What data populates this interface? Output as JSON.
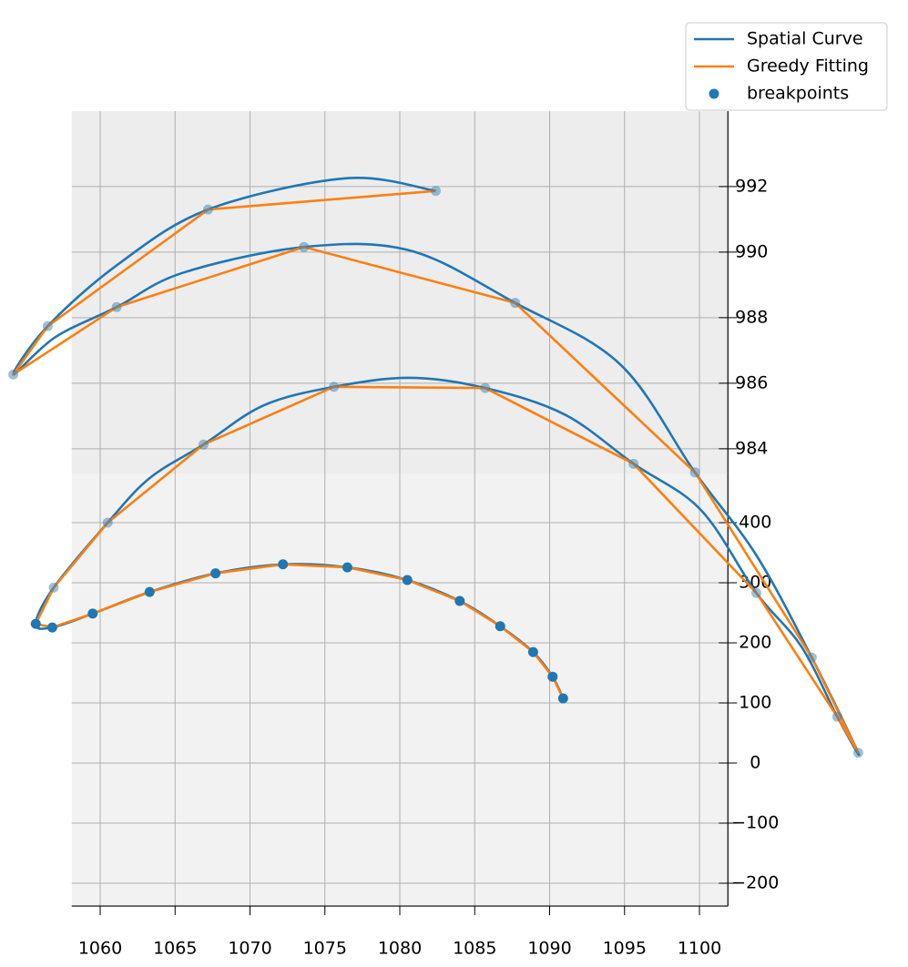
{
  "chart_data": {
    "type": "line3d",
    "xlim": [
      1058.1,
      1101.9
    ],
    "ylim": [
      -238,
      482
    ],
    "zlim": [
      983.25,
      994.3
    ],
    "xticks": [
      1060,
      1065,
      1070,
      1075,
      1080,
      1085,
      1090,
      1095,
      1100
    ],
    "yticks": [
      {
        "value": -200,
        "label": "−200"
      },
      {
        "value": -100,
        "label": "−100"
      },
      0,
      100,
      200,
      300,
      400
    ],
    "zticks": [
      984,
      986,
      988,
      990,
      992
    ],
    "grid": true,
    "legend": "upper right",
    "series": [
      {
        "name": "Spatial Curve",
        "color": "#1f77b4",
        "x": [
          1090.9,
          1090.2,
          1088.9,
          1086.7,
          1084.0,
          1080.5,
          1076.5,
          1072.2,
          1067.7,
          1063.3,
          1059.5,
          1056.8,
          1055.7,
          1056.9,
          1060.5,
          1063.3,
          1066.9,
          1070.9,
          1075.6,
          1080.7,
          1085.7,
          1091.0,
          1095.6,
          1100.1,
          1103.8,
          1106.8,
          1109.2,
          1110.6,
          1107.5,
          1103.8,
          1099.7,
          1094.7,
          1087.7,
          1080.7,
          1073.6,
          1065.5,
          1061.1,
          1057.0,
          1054.2,
          1056.5,
          1061.2,
          1067.2,
          1076.4,
          1082.4
        ],
        "y": [
          94,
          130,
          171,
          214,
          256,
          291,
          312,
          317,
          302,
          271,
          235,
          212,
          218,
          142,
          250,
          324,
          380,
          445,
          476,
          491,
          474,
          430,
          348,
          271,
          133,
          44,
          -73,
          -133,
          -138,
          32,
          170,
          350,
          452,
          539,
          545,
          502,
          445,
          395,
          333,
          277,
          380,
          471,
          523,
          502
        ],
        "z": [
          983.5,
          983.5,
          983.5,
          983.5,
          983.5,
          983.5,
          983.5,
          983.5,
          983.5,
          983.5,
          983.5,
          983.5,
          983.5,
          986,
          986,
          986,
          986,
          986,
          986,
          986,
          986,
          986,
          986,
          986,
          986,
          986,
          986,
          986,
          989,
          989,
          989,
          989,
          989,
          989,
          989,
          989,
          989,
          989,
          989,
          991.5,
          991.5,
          991.5,
          991.5,
          991.5
        ]
      },
      {
        "name": "Greedy Fitting",
        "color": "#ff7f0e",
        "x": [
          1090.9,
          1090.2,
          1088.9,
          1086.7,
          1084.0,
          1080.5,
          1076.5,
          1072.2,
          1067.7,
          1063.3,
          1059.5,
          1056.8,
          1055.7,
          1056.9,
          1060.5,
          1066.9,
          1075.6,
          1085.7,
          1095.6,
          1103.8,
          1109.2,
          1110.6,
          1107.5,
          1099.7,
          1087.7,
          1073.6,
          1061.1,
          1054.2,
          1056.5,
          1067.2,
          1082.4
        ],
        "y": [
          94,
          130,
          171,
          214,
          256,
          291,
          312,
          317,
          302,
          271,
          235,
          212,
          218,
          142,
          250,
          380,
          476,
          474,
          348,
          133,
          -73,
          -133,
          -138,
          170,
          452,
          545,
          445,
          333,
          277,
          471,
          502
        ],
        "z": [
          983.5,
          983.5,
          983.5,
          983.5,
          983.5,
          983.5,
          983.5,
          983.5,
          983.5,
          983.5,
          983.5,
          983.5,
          983.5,
          986,
          986,
          986,
          986,
          986,
          986,
          986,
          986,
          986,
          989,
          989,
          989,
          989,
          989,
          989,
          991.5,
          991.5,
          991.5
        ]
      }
    ],
    "scatter": {
      "name": "breakpoints",
      "color": "#1f77b4",
      "x": [
        1090.9,
        1090.2,
        1088.9,
        1086.7,
        1084.0,
        1080.5,
        1076.5,
        1072.2,
        1067.7,
        1063.3,
        1059.5,
        1056.8,
        1055.7,
        1056.9,
        1060.5,
        1066.9,
        1075.6,
        1085.7,
        1095.6,
        1103.8,
        1109.2,
        1110.6,
        1107.5,
        1099.7,
        1087.7,
        1073.6,
        1061.1,
        1054.2,
        1056.5,
        1067.2,
        1082.4
      ],
      "y": [
        94,
        130,
        171,
        214,
        256,
        291,
        312,
        317,
        302,
        271,
        235,
        212,
        218,
        142,
        250,
        380,
        476,
        474,
        348,
        133,
        -73,
        -133,
        -138,
        170,
        452,
        545,
        445,
        333,
        277,
        471,
        502
      ],
      "z": [
        983.5,
        983.5,
        983.5,
        983.5,
        983.5,
        983.5,
        983.5,
        983.5,
        983.5,
        983.5,
        983.5,
        983.5,
        983.5,
        986,
        986,
        986,
        986,
        986,
        986,
        986,
        986,
        986,
        989,
        989,
        989,
        989,
        989,
        989,
        991.5,
        991.5,
        991.5
      ]
    }
  }
}
